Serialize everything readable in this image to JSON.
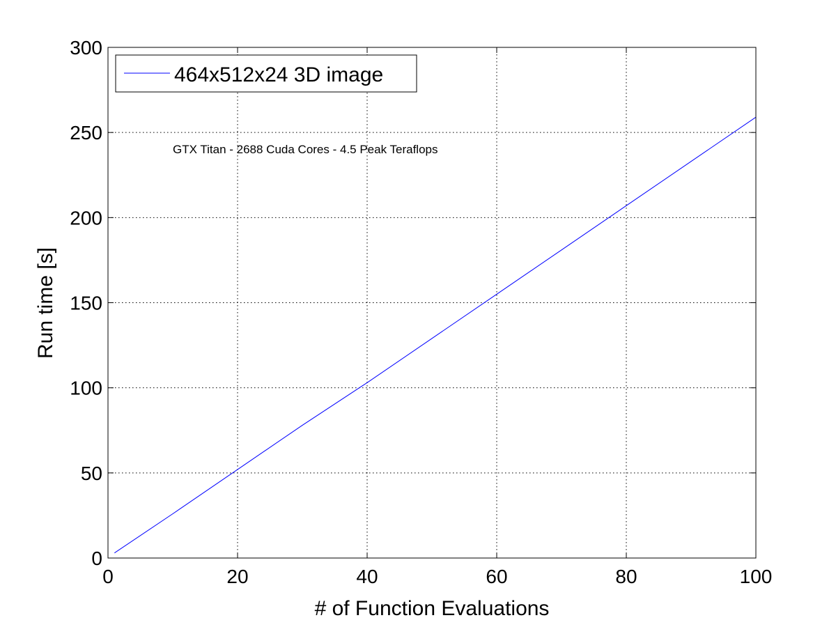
{
  "chart_data": {
    "type": "line",
    "xlabel": "# of Function Evaluations",
    "ylabel": "Run time [s]",
    "xlim": [
      0,
      100
    ],
    "ylim": [
      0,
      300
    ],
    "xticks": [
      0,
      20,
      40,
      60,
      80,
      100
    ],
    "yticks": [
      0,
      50,
      100,
      150,
      200,
      250,
      300
    ],
    "grid": true,
    "legend_position": "top-left",
    "annotation": "GTX Titan - 2688 Cuda Cores - 4.5 Peak Teraflops",
    "series": [
      {
        "name": "464x512x24 3D image",
        "color": "#0000ff",
        "x": [
          1,
          10,
          20,
          30,
          40,
          50,
          60,
          70,
          80,
          90,
          100
        ],
        "y": [
          3,
          26,
          52,
          78,
          103,
          129,
          155,
          181,
          207,
          233,
          259
        ]
      }
    ]
  }
}
